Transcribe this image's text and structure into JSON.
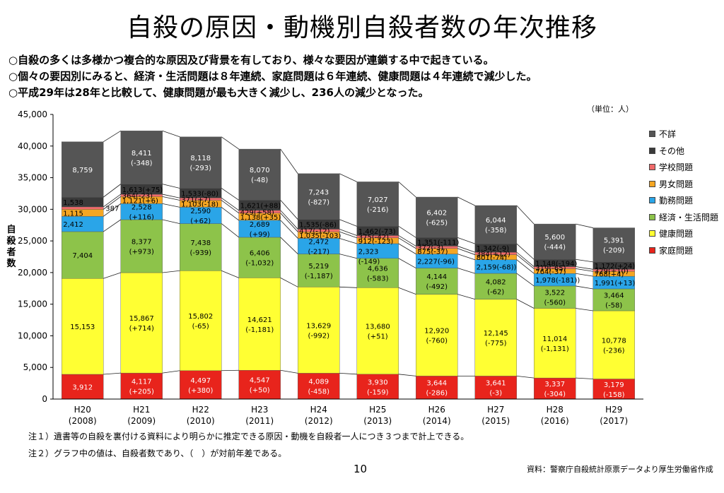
{
  "title": "自殺の原因・動機別自殺者数の年次推移",
  "bullets": [
    "○自殺の多くは多様かつ複合的な原因及び背景を有しており、様々な要因が連鎖する中で起きている。",
    "○個々の要因別にみると、経済・生活問題は８年連続、家庭問題は６年連続、健康問題は４年連続で減少した。",
    "○平成29年は28年と比較して、健康問題が最も大きく減少し、236人の減少となった。"
  ],
  "unit_label": "（単位：人）",
  "notes": [
    "注１）遺書等の自殺を裏付ける資料により明らかに推定できる原因・動機を自殺者一人につき３つまで計上できる。",
    "注２）グラフ中の値は、自殺者数であり、（　）が対前年差である。"
  ],
  "page_number": "10",
  "source": "資料：警察庁自殺統計原票データより厚生労働省作成",
  "colors": {
    "家庭問題": "#e8241c",
    "健康問題": "#ffff33",
    "経済・生活問題": "#8dc34a",
    "勤務問題": "#2aa5e8",
    "男女問題": "#f5a623",
    "学校問題": "#f06a6a",
    "その他": "#3a3a3a",
    "不詳": "#555555"
  },
  "chart_data": {
    "type": "bar",
    "stacked": true,
    "ylabel": "自殺者数",
    "ylim": [
      0,
      45000
    ],
    "yticks": [
      "0",
      "5,000",
      "10,000",
      "15,000",
      "20,000",
      "25,000",
      "30,000",
      "35,000",
      "40,000",
      "45,000"
    ],
    "categories": [
      "H20",
      "H21",
      "H22",
      "H23",
      "H24",
      "H25",
      "H26",
      "H27",
      "H28",
      "H29"
    ],
    "category_years": [
      "(2008)",
      "(2009)",
      "(2010)",
      "(2011)",
      "(2012)",
      "(2013)",
      "(2014)",
      "(2015)",
      "(2016)",
      "(2017)"
    ],
    "legend_placement": "right",
    "series": [
      {
        "name": "家庭問題",
        "values": [
          3912,
          4117,
          4497,
          4547,
          4089,
          3930,
          3644,
          3641,
          3337,
          3179
        ],
        "labels": [
          "3,912",
          "4,117\n(+205)",
          "4,497\n(+380)",
          "4,547\n(+50)",
          "4,089\n(-458)",
          "3,930\n(-159)",
          "3,644\n(-286)",
          "3,641\n(-3)",
          "3,337\n(-304)",
          "3,179\n(-158)"
        ]
      },
      {
        "name": "健康問題",
        "values": [
          15153,
          15867,
          15802,
          14621,
          13629,
          13680,
          12920,
          12145,
          11014,
          10778
        ],
        "labels": [
          "15,153",
          "15,867\n(+714)",
          "15,802\n(-65)",
          "14,621\n(-1,181)",
          "13,629\n(-992)",
          "13,680\n(+51)",
          "12,920\n(-760)",
          "12,145\n(-775)",
          "11,014\n(-1,131)",
          "10,778\n(-236)"
        ]
      },
      {
        "name": "経済・生活問題",
        "values": [
          7404,
          8377,
          7438,
          6406,
          5219,
          4636,
          4144,
          4082,
          3522,
          3464
        ],
        "labels": [
          "7,404",
          "8,377\n(+973)",
          "7,438\n(-939)",
          "6,406\n(-1,032)",
          "5,219\n(-1,187)",
          "4,636\n(-583)",
          "4,144\n(-492)",
          "4,082\n(-62)",
          "3,522\n(-560)",
          "3,464\n(-58)"
        ]
      },
      {
        "name": "勤務問題",
        "values": [
          2412,
          2528,
          2590,
          2689,
          2472,
          2323,
          2227,
          2159,
          1978,
          1991
        ],
        "labels": [
          "2,412",
          "2,528\n(+116)",
          "2,590\n(+62)",
          "2,689\n(+99)",
          "2,472\n(-217)",
          "2,323\n(-149)",
          "2,227(-96)",
          "2,159(-68))",
          "1,978(-181))",
          "1,991(+13)"
        ]
      },
      {
        "name": "男女問題",
        "values": [
          1115,
          1121,
          1103,
          1138,
          1035,
          912,
          875,
          801,
          764,
          768
        ],
        "labels": [
          "1,115",
          "1,121(+6)",
          "1,103(-18)",
          "1,138(+35)",
          "1,035(-103)",
          "912(-123)",
          "875(-37)",
          "801(-74)",
          "764(-37)",
          "768(+4)"
        ]
      },
      {
        "name": "学校問題",
        "values": [
          387,
          364,
          371,
          429,
          417,
          375,
          372,
          384,
          319,
          329
        ],
        "labels": [
          "387",
          "364(-23)",
          "371(+7)",
          "429(+58)",
          "417(-12)",
          "375(-42)",
          "372(-3)",
          "384(+12)",
          "319(-65)",
          "329(+10)"
        ]
      },
      {
        "name": "その他",
        "values": [
          1538,
          1613,
          1533,
          1621,
          1535,
          1462,
          1351,
          1342,
          1148,
          1172
        ],
        "labels": [
          "1,538",
          "1,613(+75)",
          "1,533(-80)",
          "1,621(+88)",
          "1,535(-86)",
          "1,462(-73)",
          "1,351(-111)",
          "1,342(-9)",
          "1,148(-194)",
          "1,172(+24)"
        ]
      },
      {
        "name": "不詳",
        "values": [
          8759,
          8411,
          8118,
          8070,
          7243,
          7027,
          6402,
          6044,
          5600,
          5391
        ],
        "labels": [
          "8,759",
          "8,411\n(-348)",
          "8,118\n(-293)",
          "8,070\n(-48)",
          "7,243\n(-827)",
          "7,027\n(-216)",
          "6,402\n(-625)",
          "6,044\n(-358)",
          "5,600\n(-444)",
          "5,391\n(-209)"
        ]
      }
    ],
    "legend_order": [
      "不詳",
      "その他",
      "学校問題",
      "男女問題",
      "勤務問題",
      "経済・生活問題",
      "健康問題",
      "家庭問題"
    ]
  }
}
